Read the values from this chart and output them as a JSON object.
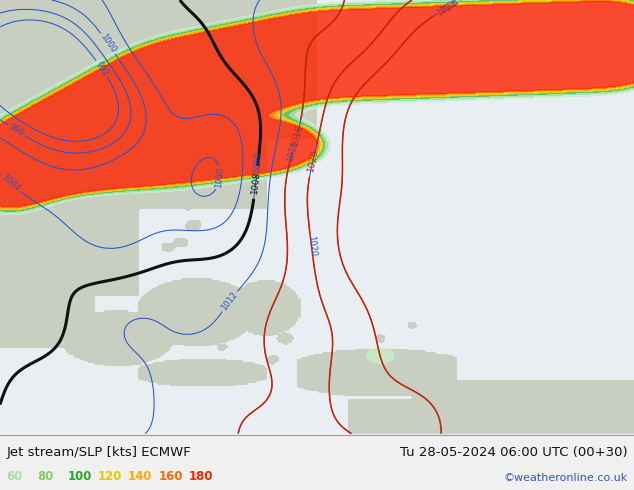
{
  "title_left": "Jet stream/SLP [kts] ECMWF",
  "title_right": "Tu 28-05-2024 06:00 UTC (00+30)",
  "credit": "©weatheronline.co.uk",
  "legend_values": [
    "60",
    "80",
    "100",
    "120",
    "140",
    "160",
    "180"
  ],
  "legend_colors": [
    "#aaddaa",
    "#88cc66",
    "#22aa22",
    "#ddcc00",
    "#ffaa00",
    "#ff6600",
    "#ff2200"
  ],
  "figsize": [
    6.34,
    4.9
  ],
  "dpi": 100,
  "sea_color": "#e8eef2",
  "land_color": "#c8cfc0",
  "jet_fill_colors": [
    "#c8eec8",
    "#a0dda0",
    "#55bb55",
    "#eedd00",
    "#ffaa00",
    "#ff6600",
    "#ff2200"
  ],
  "jet_fill_levels": [
    60,
    80,
    100,
    120,
    140,
    160,
    180,
    220
  ],
  "bottom_bar_height": 0.115,
  "title_fontsize": 9.5,
  "credit_fontsize": 8,
  "legend_fontsize": 8.5
}
